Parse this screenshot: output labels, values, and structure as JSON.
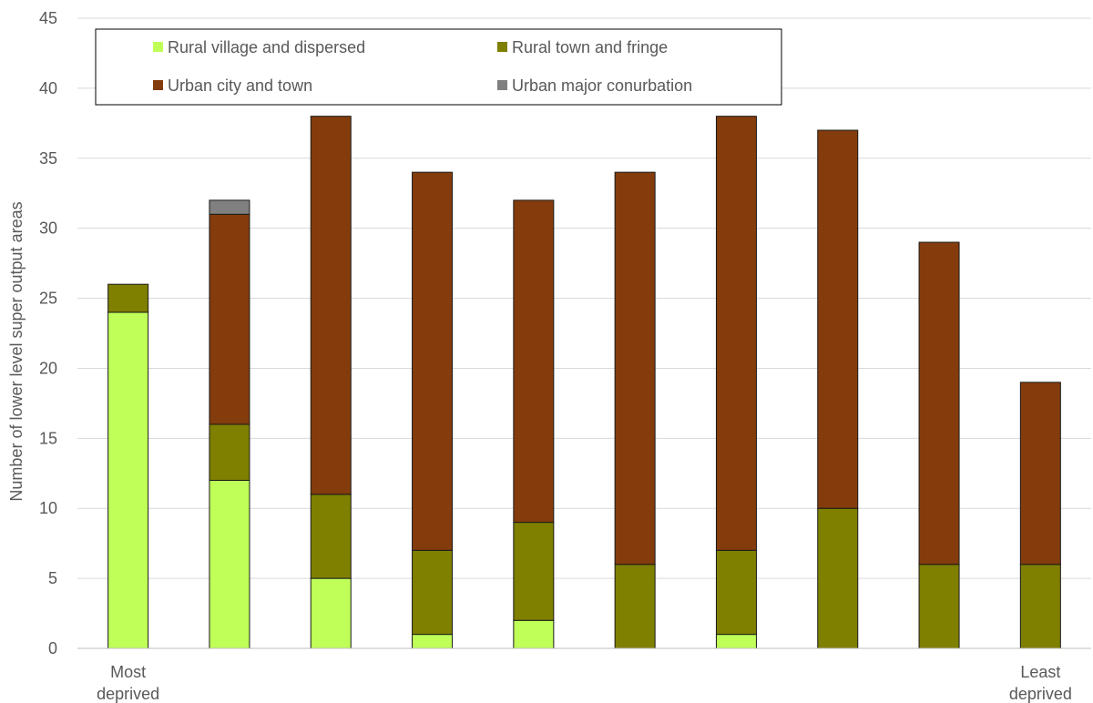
{
  "chart_data": {
    "type": "bar",
    "stacked": true,
    "ylabel": "Number of lower level super output areas",
    "xlabel": "",
    "ylim": [
      0,
      45
    ],
    "yticks": [
      0,
      5,
      10,
      15,
      20,
      25,
      30,
      35,
      40,
      45
    ],
    "grid": true,
    "legend_position": "top-left",
    "categories": [
      [
        "Most",
        "deprived"
      ],
      [
        ""
      ],
      [
        ""
      ],
      [
        ""
      ],
      [
        ""
      ],
      [
        ""
      ],
      [
        ""
      ],
      [
        ""
      ],
      [
        ""
      ],
      [
        "Least",
        "deprived"
      ]
    ],
    "series": [
      {
        "name": "Rural village and dispersed",
        "color": "#bfff58",
        "values": [
          24,
          12,
          5,
          1,
          2,
          0,
          1,
          0,
          0,
          0
        ]
      },
      {
        "name": "Rural town and fringe",
        "color": "#7f7f00",
        "values": [
          2,
          4,
          6,
          6,
          7,
          6,
          6,
          10,
          6,
          6
        ]
      },
      {
        "name": "Urban city and town",
        "color": "#843c0c",
        "values": [
          0,
          15,
          27,
          27,
          23,
          28,
          31,
          27,
          23,
          13
        ]
      },
      {
        "name": "Urban major conurbation",
        "color": "#808080",
        "values": [
          0,
          1,
          0,
          0,
          0,
          0,
          0,
          0,
          0,
          0
        ]
      }
    ]
  }
}
